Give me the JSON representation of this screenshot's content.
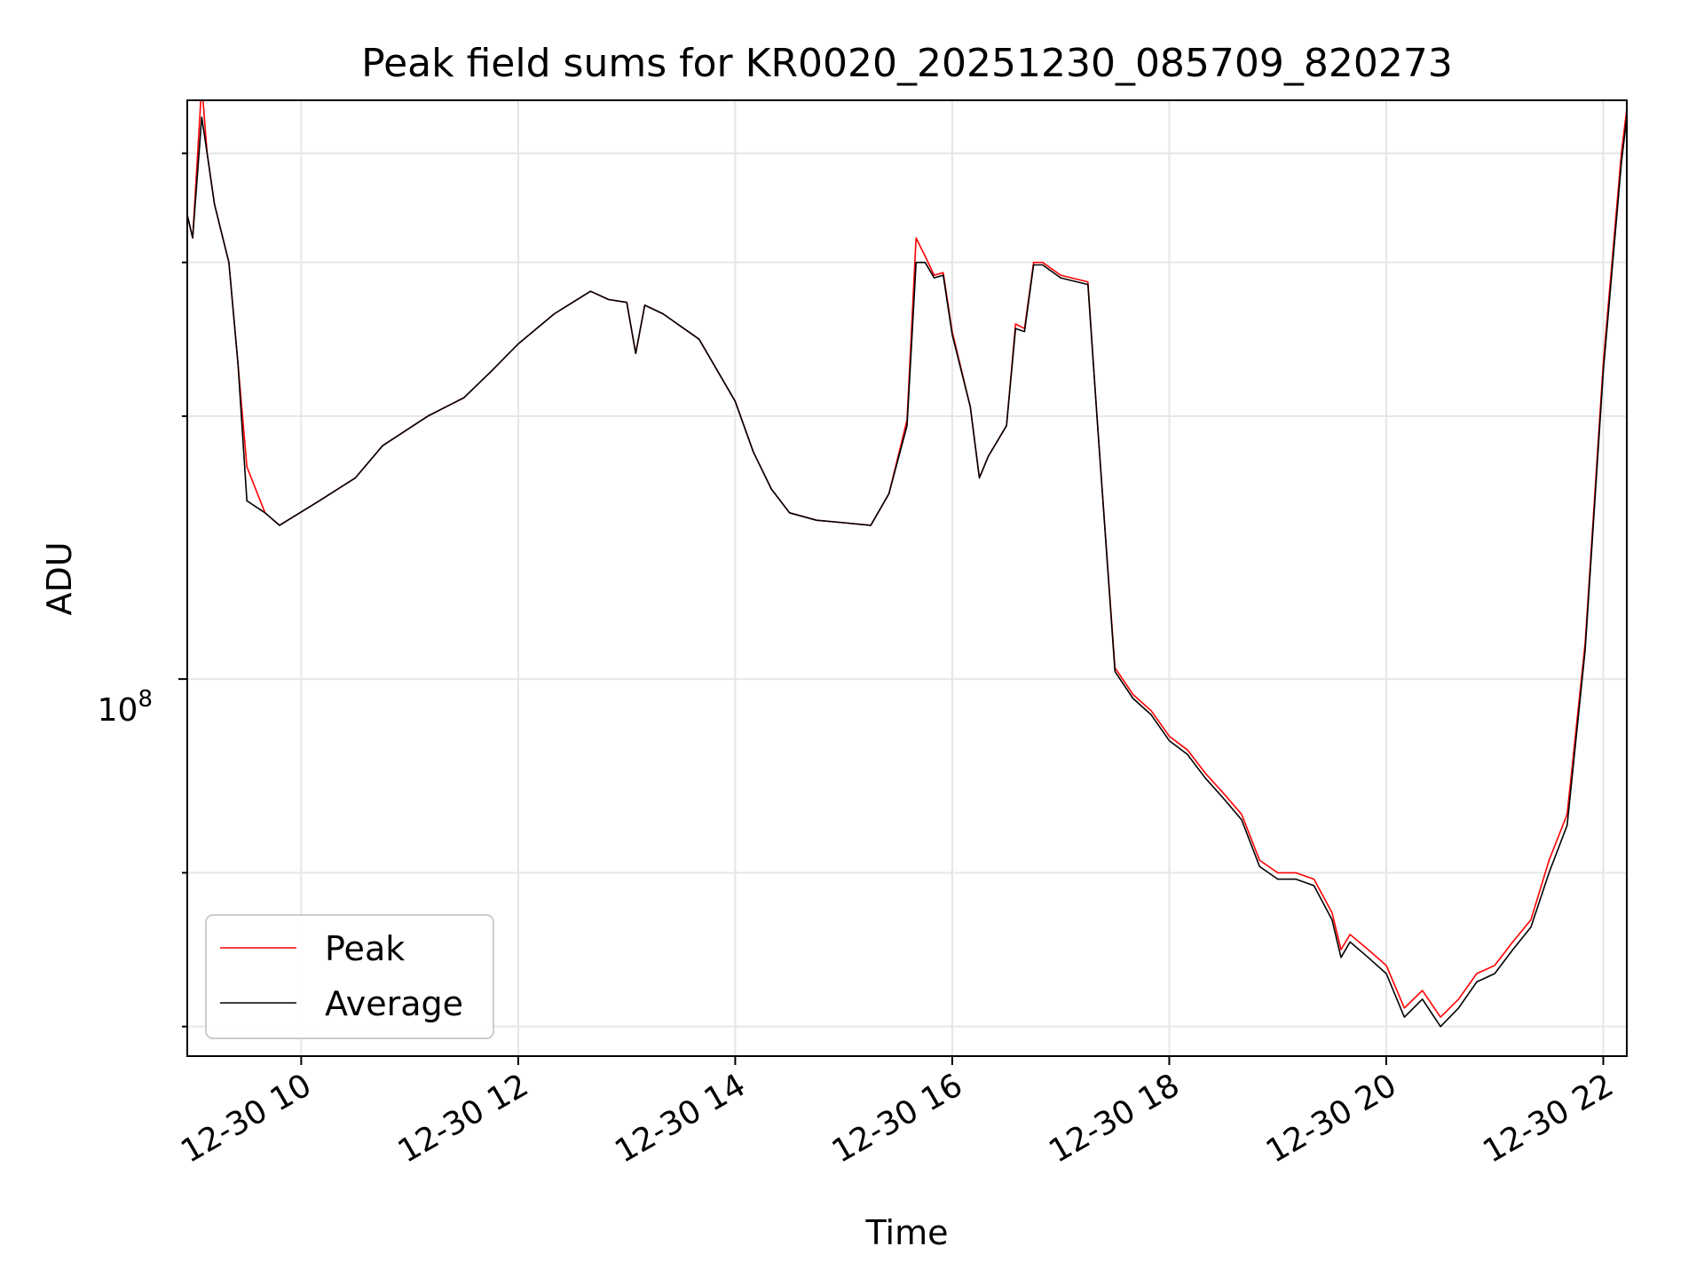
{
  "chart_data": {
    "type": "line",
    "title": "Peak field sums for KR0020_20251230_085709_820273",
    "xlabel": "Time",
    "ylabel": "ADU",
    "x_ticks": [
      "12-30 10",
      "12-30 12",
      "12-30 14",
      "12-30 16",
      "12-30 18",
      "12-30 20",
      "12-30 22"
    ],
    "y_tick_label": "10",
    "y_tick_exponent": "8",
    "y_scale": "log",
    "ylim": [
      37000000,
      460000000
    ],
    "xlim": [
      "12-30 08:57",
      "12-30 22:13"
    ],
    "grid": true,
    "legend_position": "lower-left",
    "x": [
      "12-30 08:57",
      "12-30 09:00",
      "12-30 09:05",
      "12-30 09:08",
      "12-30 09:12",
      "12-30 09:20",
      "12-30 09:25",
      "12-30 09:30",
      "12-30 09:40",
      "12-30 09:48",
      "12-30 10:10",
      "12-30 10:30",
      "12-30 10:45",
      "12-30 11:10",
      "12-30 11:30",
      "12-30 11:45",
      "12-30 12:00",
      "12-30 12:20",
      "12-30 12:40",
      "12-30 12:50",
      "12-30 13:00",
      "12-30 13:05",
      "12-30 13:10",
      "12-30 13:20",
      "12-30 13:40",
      "12-30 14:00",
      "12-30 14:10",
      "12-30 14:20",
      "12-30 14:30",
      "12-30 14:45",
      "12-30 15:00",
      "12-30 15:15",
      "12-30 15:25",
      "12-30 15:35",
      "12-30 15:40",
      "12-30 15:45",
      "12-30 15:50",
      "12-30 15:55",
      "12-30 16:00",
      "12-30 16:10",
      "12-30 16:15",
      "12-30 16:20",
      "12-30 16:30",
      "12-30 16:35",
      "12-30 16:40",
      "12-30 16:45",
      "12-30 16:50",
      "12-30 17:00",
      "12-30 17:15",
      "12-30 17:20",
      "12-30 17:30",
      "12-30 17:40",
      "12-30 17:50",
      "12-30 18:00",
      "12-30 18:10",
      "12-30 18:20",
      "12-30 18:30",
      "12-30 18:40",
      "12-30 18:50",
      "12-30 19:00",
      "12-30 19:10",
      "12-30 19:20",
      "12-30 19:30",
      "12-30 19:35",
      "12-30 19:40",
      "12-30 19:50",
      "12-30 20:00",
      "12-30 20:10",
      "12-30 20:20",
      "12-30 20:30",
      "12-30 20:40",
      "12-30 20:50",
      "12-30 21:00",
      "12-30 21:10",
      "12-30 21:20",
      "12-30 21:30",
      "12-30 21:40",
      "12-30 21:50",
      "12-30 22:00",
      "12-30 22:10",
      "12-30 22:13"
    ],
    "series": [
      {
        "name": "Peak",
        "color": "#ff0000",
        "values": [
          340000000,
          320000000,
          480000000,
          400000000,
          350000000,
          300000000,
          230000000,
          175000000,
          155000000,
          150000000,
          160000000,
          170000000,
          185000000,
          200000000,
          210000000,
          225000000,
          242000000,
          262000000,
          278000000,
          272000000,
          270000000,
          236000000,
          268000000,
          262000000,
          245000000,
          208000000,
          182000000,
          165000000,
          155000000,
          152000000,
          151000000,
          150000000,
          163000000,
          198000000,
          320000000,
          305000000,
          290000000,
          292000000,
          250000000,
          205000000,
          170000000,
          180000000,
          195000000,
          255000000,
          252000000,
          300000000,
          300000000,
          290000000,
          285000000,
          200000000,
          103000000,
          96000000,
          92000000,
          86000000,
          83000000,
          78000000,
          74000000,
          70000000,
          62000000,
          60000000,
          60000000,
          59000000,
          54000000,
          49000000,
          51000000,
          49000000,
          47000000,
          42000000,
          44000000,
          41000000,
          43000000,
          46000000,
          47000000,
          50000000,
          53000000,
          62000000,
          70000000,
          110000000,
          230000000,
          400000000,
          450000000
        ]
      },
      {
        "name": "Average",
        "color": "#000000",
        "values": [
          340000000,
          320000000,
          440000000,
          400000000,
          350000000,
          300000000,
          230000000,
          160000000,
          155000000,
          150000000,
          160000000,
          170000000,
          185000000,
          200000000,
          210000000,
          225000000,
          242000000,
          262000000,
          278000000,
          272000000,
          270000000,
          236000000,
          268000000,
          262000000,
          245000000,
          208000000,
          182000000,
          165000000,
          155000000,
          152000000,
          151000000,
          150000000,
          163000000,
          195000000,
          300000000,
          300000000,
          288000000,
          290000000,
          248000000,
          205000000,
          170000000,
          180000000,
          195000000,
          252000000,
          250000000,
          298000000,
          298000000,
          288000000,
          283000000,
          200000000,
          102000000,
          95000000,
          91000000,
          85000000,
          82000000,
          77000000,
          73000000,
          69000000,
          61000000,
          59000000,
          59000000,
          58000000,
          53000000,
          48000000,
          50000000,
          48000000,
          46000000,
          41000000,
          43000000,
          40000000,
          42000000,
          45000000,
          46000000,
          49000000,
          52000000,
          60000000,
          68000000,
          108000000,
          225000000,
          390000000,
          440000000
        ]
      }
    ]
  }
}
